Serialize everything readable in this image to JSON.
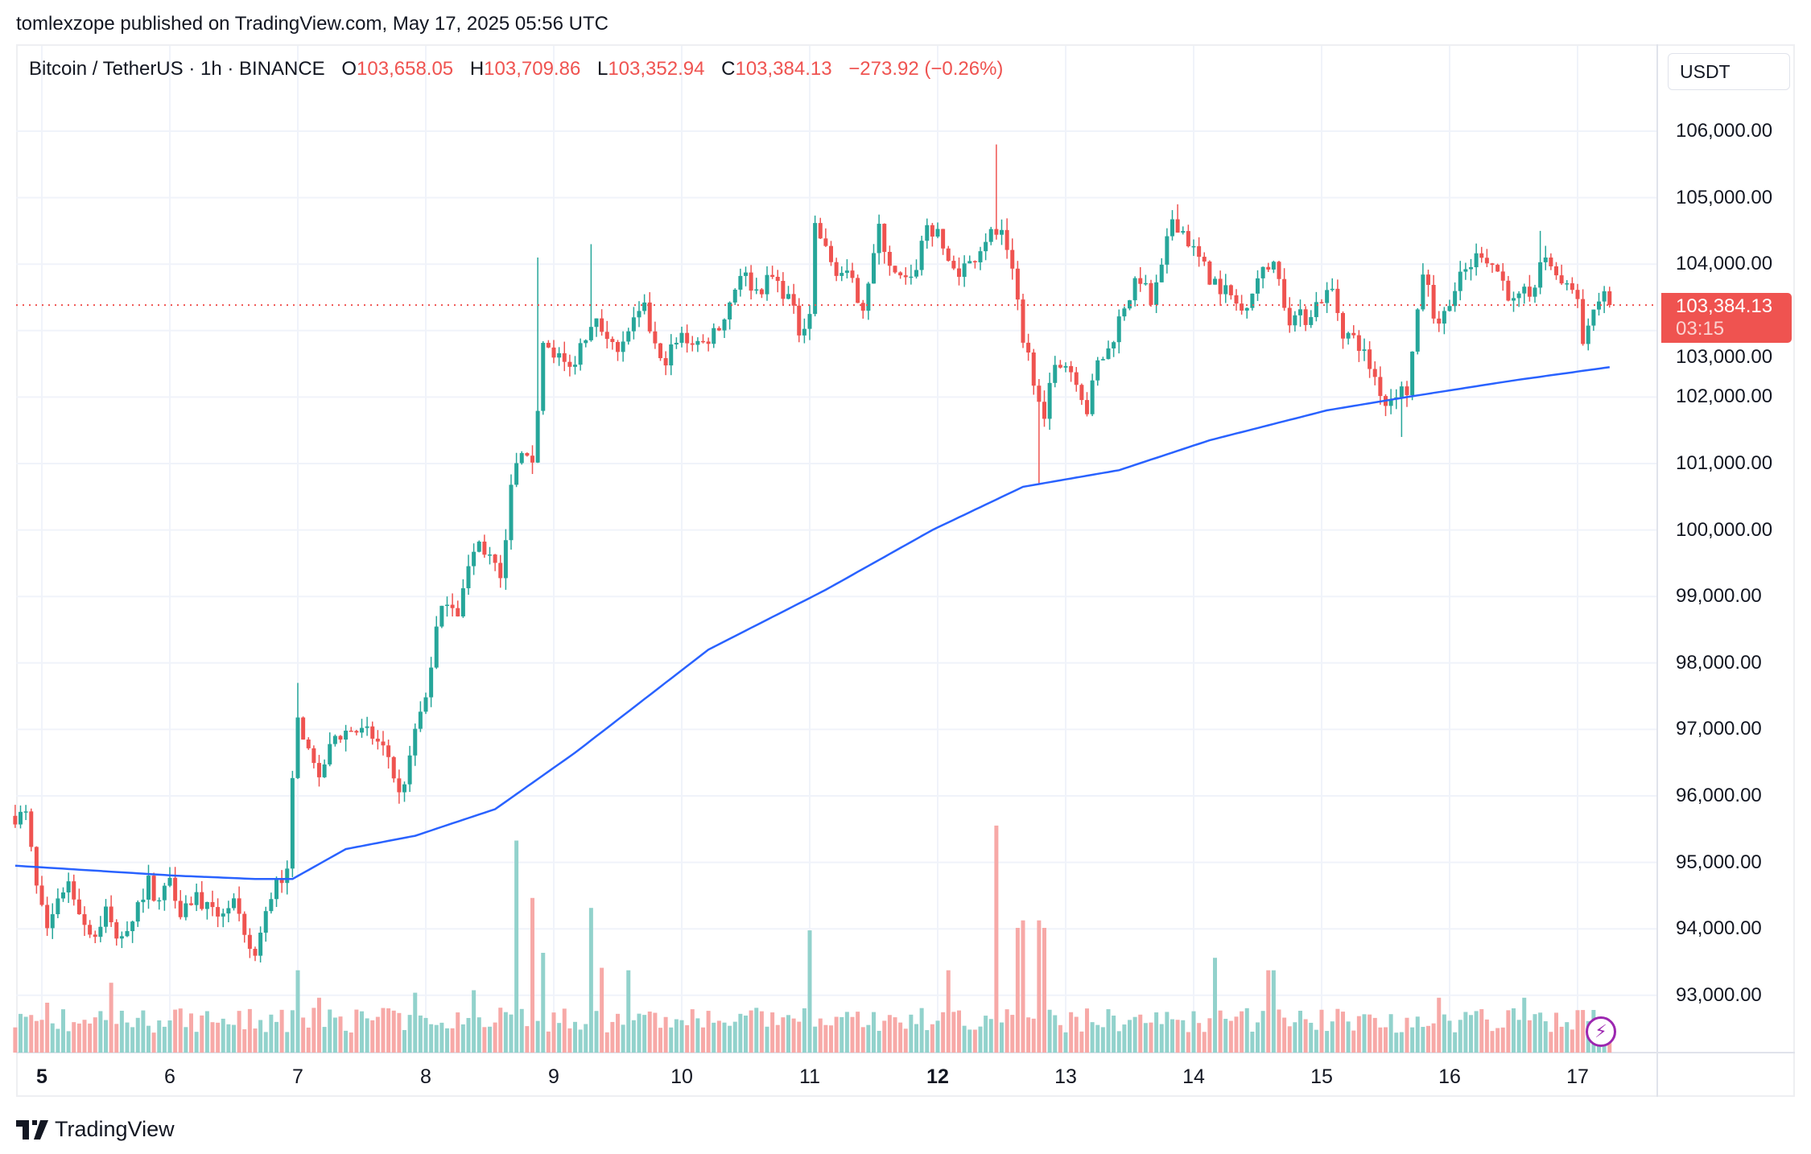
{
  "header": {
    "published": "tomlexzope published on TradingView.com, May 17, 2025 05:56 UTC"
  },
  "legend": {
    "symbol": "Bitcoin / TetherUS · 1h · BINANCE",
    "o_label": "O",
    "o": "103,658.05",
    "h_label": "H",
    "h": "103,709.86",
    "l_label": "L",
    "l": "103,352.94",
    "c_label": "C",
    "c": "103,384.13",
    "change": "−273.92 (−0.26%)"
  },
  "price_axis": {
    "currency": "USDT",
    "labels": [
      "106,000.00",
      "105,000.00",
      "104,000.00",
      "103,000.00",
      "102,000.00",
      "101,000.00",
      "100,000.00",
      "99,000.00",
      "98,000.00",
      "97,000.00",
      "96,000.00",
      "95,000.00",
      "94,000.00",
      "93,000.00"
    ],
    "current_price": "103,384.13",
    "countdown": "03:15"
  },
  "time_axis": {
    "labels": [
      "5",
      "6",
      "7",
      "8",
      "9",
      "10",
      "11",
      "12",
      "13",
      "14",
      "15",
      "16",
      "17"
    ],
    "bold": [
      "5",
      "12"
    ]
  },
  "footer": {
    "brand": "TradingView"
  },
  "colors": {
    "up": "#26a69a",
    "down": "#ef5350",
    "ma": "#2962ff",
    "vol_up": "#92d2cc",
    "vol_down": "#f7a9a7",
    "grid": "#f0f3fa",
    "alert": "#9c27b0"
  },
  "icons": {
    "alert": "lightning-icon",
    "logo": "tradingview-logo"
  },
  "chart_data": {
    "type": "candlestick",
    "interval": "1h",
    "ylim": [
      92100,
      106850
    ],
    "x_range": [
      "May 4 19:00",
      "May 17 05:00"
    ],
    "grid": true,
    "last_close": 103384.13,
    "close_path_hours_from_may5": [
      [
        -5,
        95700
      ],
      [
        -3,
        95700
      ],
      [
        -1,
        94600
      ],
      [
        1,
        93900
      ],
      [
        3,
        94500
      ],
      [
        5,
        94700
      ],
      [
        8,
        94100
      ],
      [
        10,
        93900
      ],
      [
        12,
        94300
      ],
      [
        14,
        93800
      ],
      [
        17,
        94200
      ],
      [
        20,
        94700
      ],
      [
        22,
        94400
      ],
      [
        24,
        94800
      ],
      [
        26,
        94300
      ],
      [
        29,
        94500
      ],
      [
        32,
        94200
      ],
      [
        36,
        94400
      ],
      [
        38,
        93800
      ],
      [
        40,
        93600
      ],
      [
        42,
        94200
      ],
      [
        44,
        94800
      ],
      [
        46,
        94800
      ],
      [
        47,
        96200
      ],
      [
        48,
        97300
      ],
      [
        50,
        96600
      ],
      [
        52,
        96300
      ],
      [
        55,
        96900
      ],
      [
        58,
        97000
      ],
      [
        62,
        96900
      ],
      [
        65,
        96600
      ],
      [
        67,
        96000
      ],
      [
        69,
        96500
      ],
      [
        70,
        97000
      ],
      [
        72,
        97500
      ],
      [
        74,
        98500
      ],
      [
        76,
        99000
      ],
      [
        78,
        98800
      ],
      [
        80,
        99400
      ],
      [
        82,
        99800
      ],
      [
        84,
        99600
      ],
      [
        86,
        99200
      ],
      [
        88,
        100700
      ],
      [
        90,
        101100
      ],
      [
        92,
        100900
      ],
      [
        94,
        102800
      ],
      [
        96,
        102700
      ],
      [
        99,
        102400
      ],
      [
        101,
        102800
      ],
      [
        104,
        103300
      ],
      [
        107,
        102700
      ],
      [
        110,
        103000
      ],
      [
        113,
        103300
      ],
      [
        116,
        102500
      ],
      [
        119,
        102800
      ],
      [
        120,
        102900
      ],
      [
        124,
        102800
      ],
      [
        128,
        103200
      ],
      [
        131,
        103900
      ],
      [
        134,
        103600
      ],
      [
        137,
        103800
      ],
      [
        140,
        103500
      ],
      [
        142,
        103000
      ],
      [
        144,
        103300
      ],
      [
        145,
        104600
      ],
      [
        148,
        104000
      ],
      [
        151,
        103800
      ],
      [
        154,
        103400
      ],
      [
        157,
        104500
      ],
      [
        160,
        103800
      ],
      [
        163,
        103700
      ],
      [
        166,
        104600
      ],
      [
        168,
        104400
      ],
      [
        171,
        103900
      ],
      [
        174,
        104000
      ],
      [
        177,
        104400
      ],
      [
        180,
        104500
      ],
      [
        182,
        104000
      ],
      [
        184,
        102900
      ],
      [
        186,
        102300
      ],
      [
        188,
        101800
      ],
      [
        190,
        102600
      ],
      [
        192,
        102500
      ],
      [
        194,
        102300
      ],
      [
        196,
        101800
      ],
      [
        198,
        102500
      ],
      [
        200,
        102700
      ],
      [
        203,
        103400
      ],
      [
        206,
        103800
      ],
      [
        208,
        103400
      ],
      [
        210,
        103900
      ],
      [
        212,
        104700
      ],
      [
        214,
        104500
      ],
      [
        216,
        104200
      ],
      [
        219,
        103800
      ],
      [
        222,
        103600
      ],
      [
        225,
        103300
      ],
      [
        228,
        103800
      ],
      [
        231,
        104000
      ],
      [
        234,
        103200
      ],
      [
        237,
        103200
      ],
      [
        240,
        103500
      ],
      [
        242,
        103600
      ],
      [
        244,
        103000
      ],
      [
        247,
        102800
      ],
      [
        250,
        102300
      ],
      [
        252,
        101900
      ],
      [
        254,
        102100
      ],
      [
        256,
        102100
      ],
      [
        258,
        103200
      ],
      [
        259,
        103900
      ],
      [
        262,
        103000
      ],
      [
        264,
        103500
      ],
      [
        267,
        103900
      ],
      [
        270,
        104200
      ],
      [
        273,
        103900
      ],
      [
        276,
        103400
      ],
      [
        279,
        103600
      ],
      [
        282,
        104100
      ],
      [
        285,
        103700
      ],
      [
        288,
        103500
      ],
      [
        289,
        102900
      ],
      [
        291,
        103300
      ],
      [
        293,
        103600
      ],
      [
        294,
        103384
      ]
    ],
    "notable_wicks": [
      [
        48,
        97700
      ],
      [
        87,
        99100
      ],
      [
        93,
        104100
      ],
      [
        103,
        104300
      ],
      [
        179,
        105800
      ],
      [
        187,
        100700
      ],
      [
        213,
        104900
      ],
      [
        255,
        101400
      ],
      [
        281,
        104500
      ]
    ],
    "ma": {
      "period": 200,
      "points": [
        [
          -5,
          94950
        ],
        [
          25,
          94800
        ],
        [
          40,
          94750
        ],
        [
          47,
          94750
        ],
        [
          57,
          95200
        ],
        [
          70,
          95400
        ],
        [
          85,
          95800
        ],
        [
          100,
          96650
        ],
        [
          125,
          98200
        ],
        [
          147,
          99100
        ],
        [
          167,
          100000
        ],
        [
          184,
          100650
        ],
        [
          202,
          100900
        ],
        [
          219,
          101350
        ],
        [
          241,
          101800
        ],
        [
          256,
          102000
        ],
        [
          276,
          102250
        ],
        [
          294,
          102450
        ]
      ]
    },
    "volume_relative": {
      "baseline": 8,
      "spikes": [
        [
          1,
          20
        ],
        [
          13,
          28
        ],
        [
          48,
          33
        ],
        [
          52,
          22
        ],
        [
          70,
          24
        ],
        [
          81,
          25
        ],
        [
          86,
          18
        ],
        [
          89,
          85
        ],
        [
          92,
          62
        ],
        [
          94,
          40
        ],
        [
          103,
          58
        ],
        [
          105,
          34
        ],
        [
          110,
          33
        ],
        [
          144,
          49
        ],
        [
          170,
          33
        ],
        [
          179,
          91
        ],
        [
          183,
          50
        ],
        [
          184,
          53
        ],
        [
          187,
          53
        ],
        [
          188,
          50
        ],
        [
          220,
          38
        ],
        [
          230,
          33
        ],
        [
          231,
          33
        ],
        [
          262,
          22
        ],
        [
          278,
          22
        ],
        [
          288,
          17
        ]
      ]
    }
  }
}
